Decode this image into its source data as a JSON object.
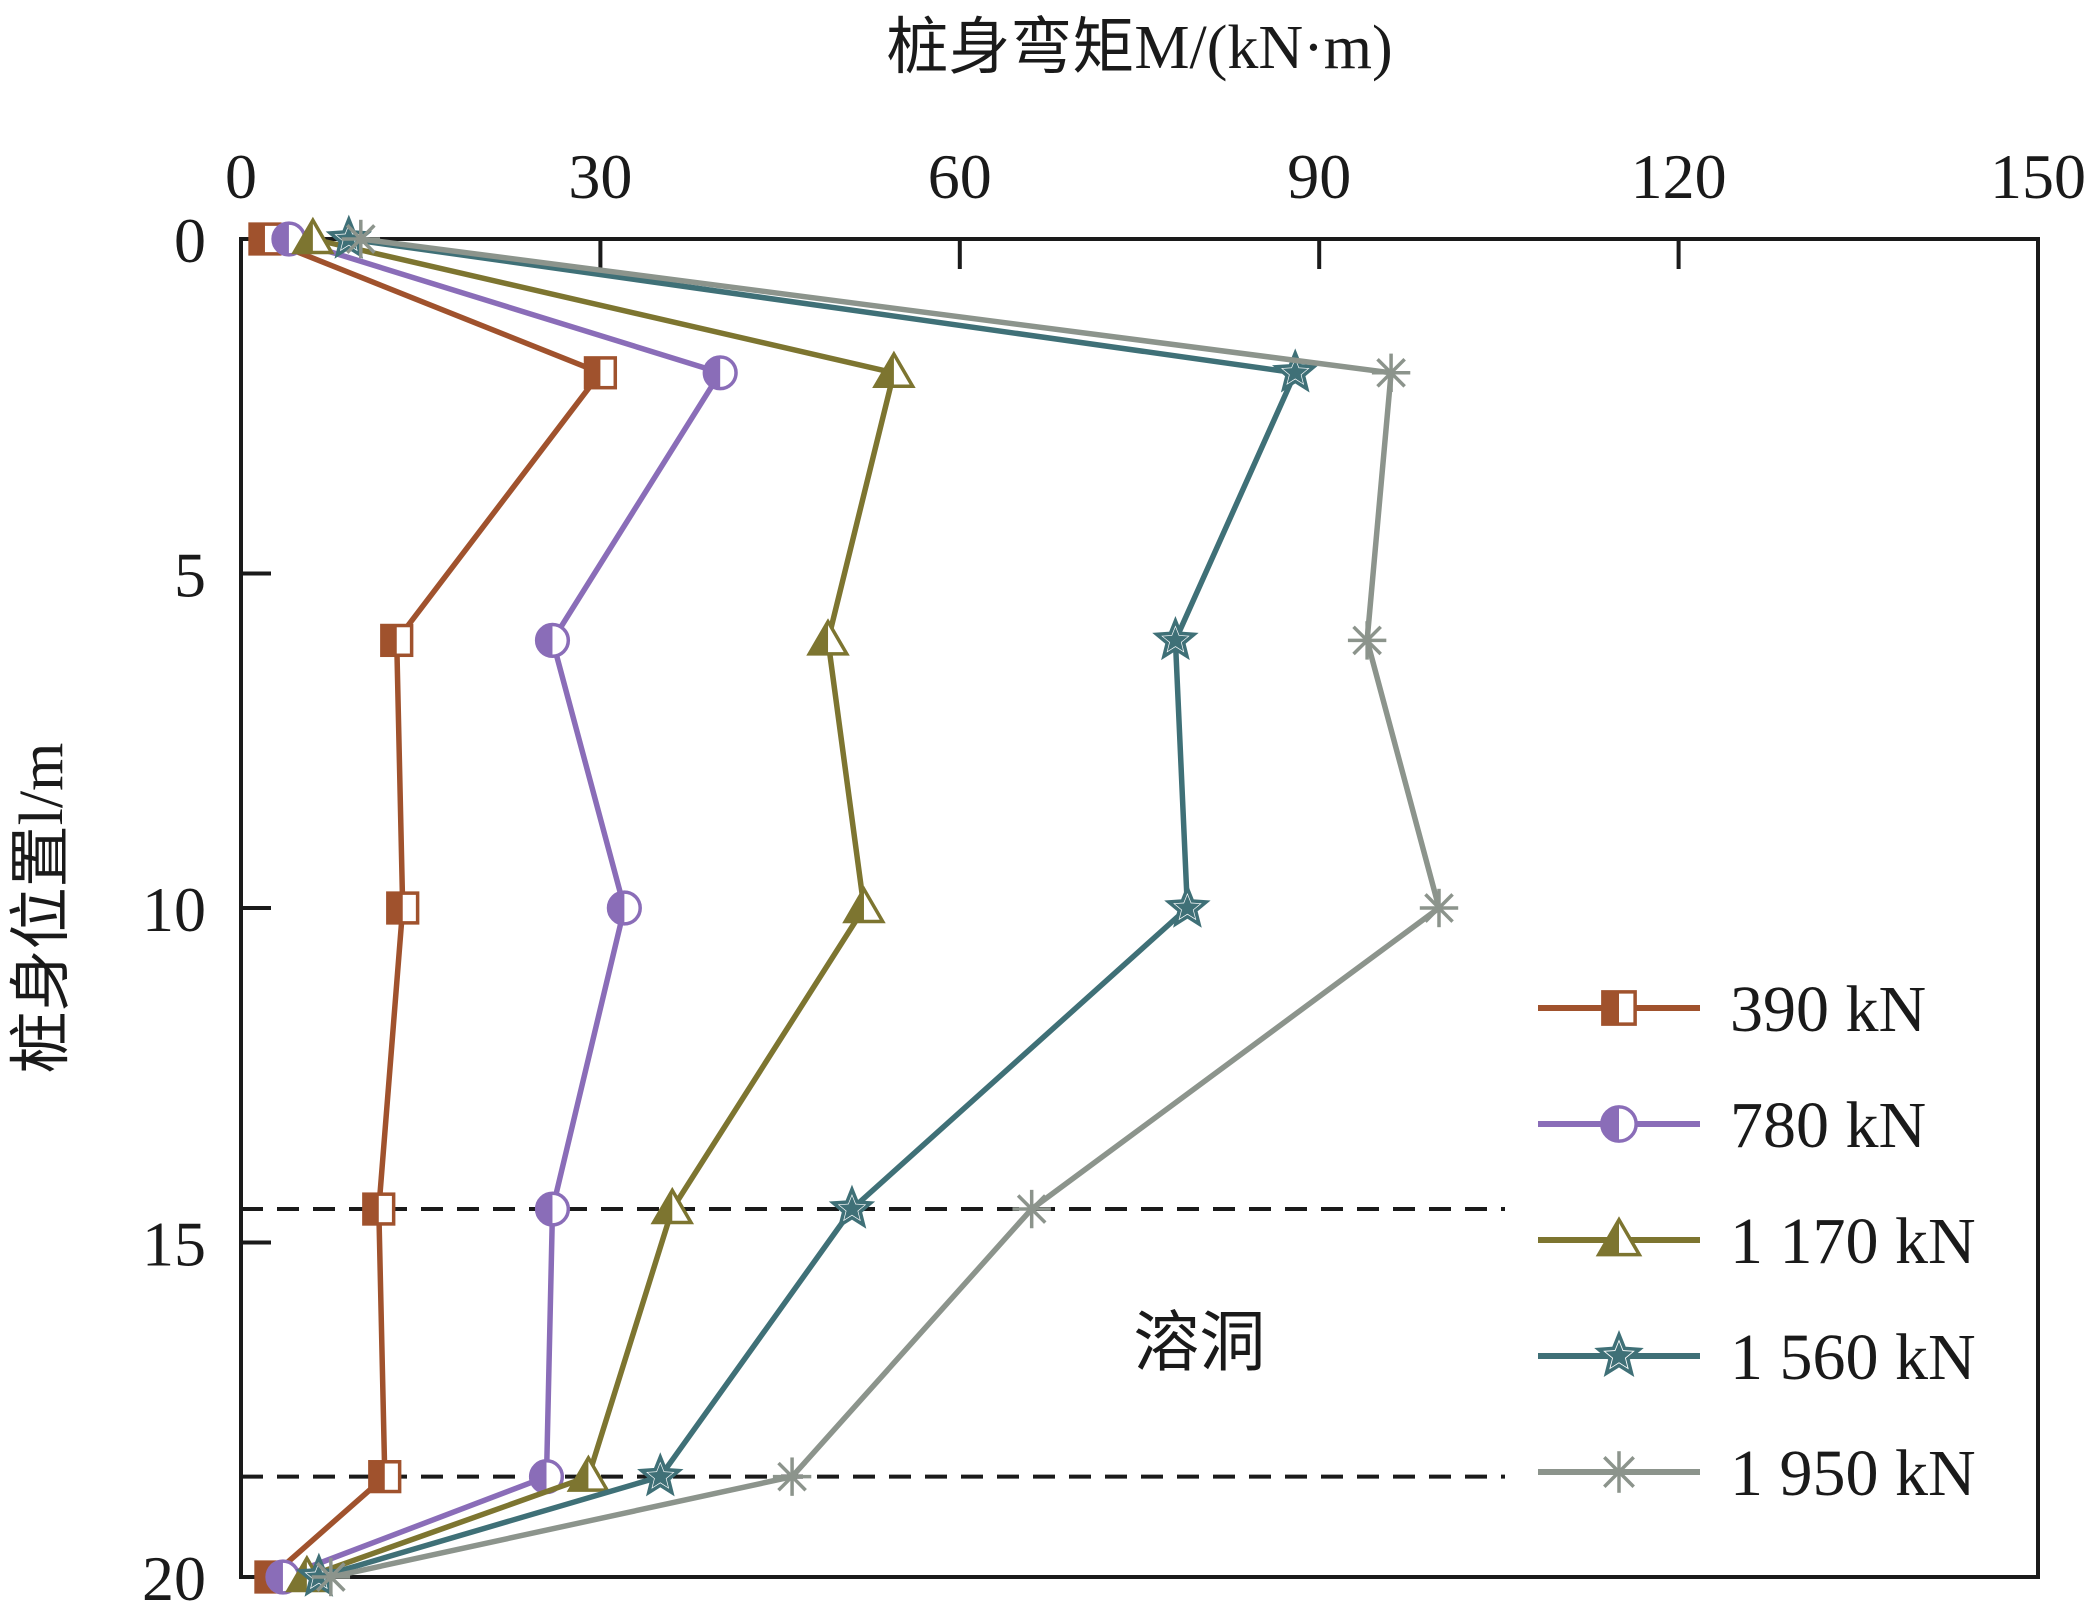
{
  "chart_data": {
    "type": "line",
    "xlabel": "桩身弯矩M/(kN·m)",
    "ylabel": "桩身位置l/m",
    "xlim": [
      0,
      150
    ],
    "ylim": [
      0,
      20
    ],
    "x_axis_position": "top",
    "y_axis_inverted": true,
    "x_ticks": [
      0,
      30,
      60,
      90,
      120,
      150
    ],
    "y_ticks": [
      0,
      5,
      10,
      15,
      20
    ],
    "grid": false,
    "legend_position": "bottom-right",
    "series": [
      {
        "name": "390 kN",
        "color": "#a0522d",
        "marker": "square",
        "x": [
          2,
          30,
          13,
          13.5,
          11.5,
          12,
          2.5
        ],
        "y": [
          0,
          2,
          6,
          10,
          14.5,
          18.5,
          20
        ]
      },
      {
        "name": "780 kN",
        "color": "#8a6db8",
        "marker": "circle",
        "x": [
          4,
          40,
          26,
          32,
          26,
          25.5,
          3.5
        ],
        "y": [
          0,
          2,
          6,
          10,
          14.5,
          18.5,
          20
        ]
      },
      {
        "name": "1 170 kN",
        "color": "#7d7530",
        "marker": "triangle",
        "x": [
          6,
          54.5,
          49,
          52,
          36,
          29,
          5.5
        ],
        "y": [
          0,
          2,
          6,
          10,
          14.5,
          18.5,
          20
        ]
      },
      {
        "name": "1 560 kN",
        "color": "#3f7077",
        "marker": "star",
        "x": [
          9,
          88,
          78,
          79,
          51,
          35,
          6.5
        ],
        "y": [
          0,
          2,
          6,
          10,
          14.5,
          18.5,
          20
        ]
      },
      {
        "name": "1 950 kN",
        "color": "#8c948c",
        "marker": "asterisk",
        "x": [
          10,
          96,
          94,
          100,
          66,
          46,
          7.5
        ],
        "y": [
          0,
          2,
          6,
          10,
          14.5,
          18.5,
          20
        ]
      }
    ],
    "reference_lines": [
      {
        "axis": "y",
        "value": 14.5,
        "style": "dashed"
      },
      {
        "axis": "y",
        "value": 18.5,
        "style": "dashed"
      }
    ],
    "annotations": [
      {
        "text": "溶洞",
        "x": 80,
        "y": 16.5
      }
    ]
  }
}
